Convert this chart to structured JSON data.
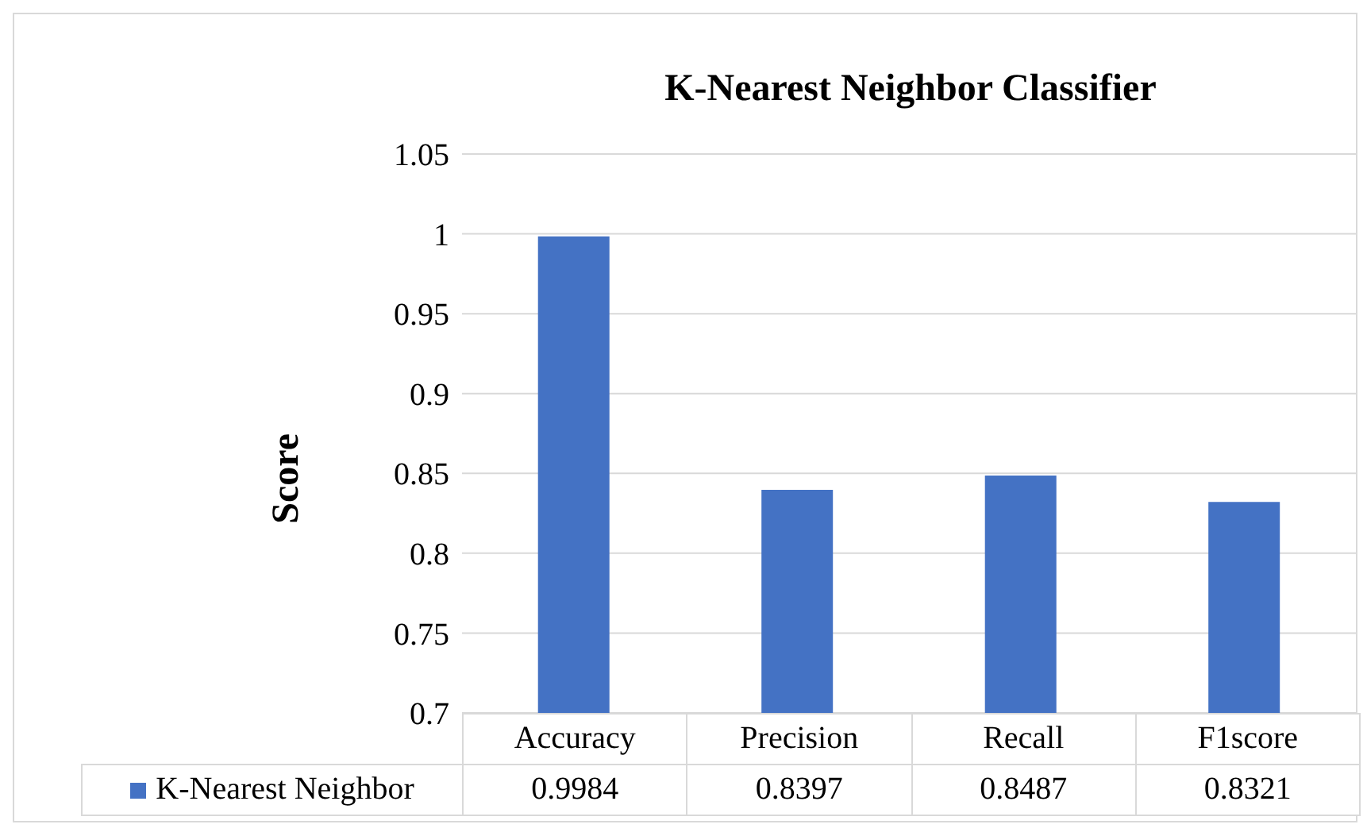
{
  "chart_data": {
    "type": "bar",
    "title": "K-Nearest Neighbor Classifier",
    "ylabel": "Score",
    "categories": [
      "Accuracy",
      "Precision",
      "Recall",
      "F1score"
    ],
    "series": [
      {
        "name": "K-Nearest Neighbor",
        "color": "#4472c4",
        "values": [
          0.9984,
          0.8397,
          0.8487,
          0.8321
        ]
      }
    ],
    "ylim": [
      0.7,
      1.05
    ],
    "yticks": [
      0.7,
      0.75,
      0.8,
      0.85,
      0.9,
      0.95,
      1,
      1.05
    ],
    "grid": "y",
    "legend": "bottom",
    "data_labels": true
  }
}
